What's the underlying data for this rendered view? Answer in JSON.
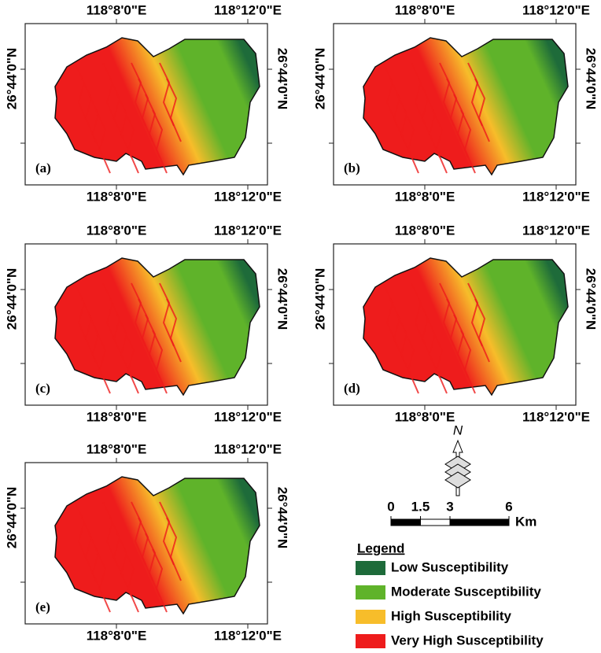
{
  "panels": [
    {
      "label": "(a)",
      "top": [
        "118°8'0\"E",
        "118°12'0\"E"
      ],
      "bottom": [
        "118°8'0\"E",
        "118°12'0\"E"
      ],
      "left": "26°44'0\"N",
      "right": "26°44'0\"N"
    },
    {
      "label": "(b)",
      "top": [
        "118°8'0\"E",
        "118°12'0\"E"
      ],
      "bottom": [
        "118°8'0\"E",
        "118°12'0\"E"
      ],
      "left": "26°44'0\"N",
      "right": "26°44'0\"N"
    },
    {
      "label": "(c)",
      "top": [
        "118°8'0\"E",
        "118°12'0\"E"
      ],
      "bottom": [
        "118°8'0\"E",
        "118°12'0\"E"
      ],
      "left": "26°44'0\"N",
      "right": "26°44'0\"N"
    },
    {
      "label": "(d)",
      "top": [
        "118°8'0\"E",
        "118°12'0\"E"
      ],
      "bottom": [
        "118°8'0\"E",
        "118°12'0\"E"
      ],
      "left": "26°44'0\"N",
      "right": "26°44'0\"N"
    },
    {
      "label": "(e)",
      "top": [
        "118°8'0\"E",
        "118°12'0\"E"
      ],
      "bottom": [
        "118°8'0\"E",
        "118°12'0\"E"
      ],
      "left": "26°44'0\"N",
      "right": "26°44'0\"N"
    }
  ],
  "north": "N",
  "scale": {
    "ticks": [
      0,
      1.5,
      3,
      6
    ],
    "unit": "Km"
  },
  "legend": {
    "title": "Legend",
    "items": [
      {
        "name": "Low Susceptibility",
        "color": "#1e6b3a"
      },
      {
        "name": "Moderate Susceptibility",
        "color": "#5fb32a"
      },
      {
        "name": "High Susceptibility",
        "color": "#f7bd2a"
      },
      {
        "name": "Very High Susceptibility",
        "color": "#ee1c1c"
      }
    ]
  }
}
